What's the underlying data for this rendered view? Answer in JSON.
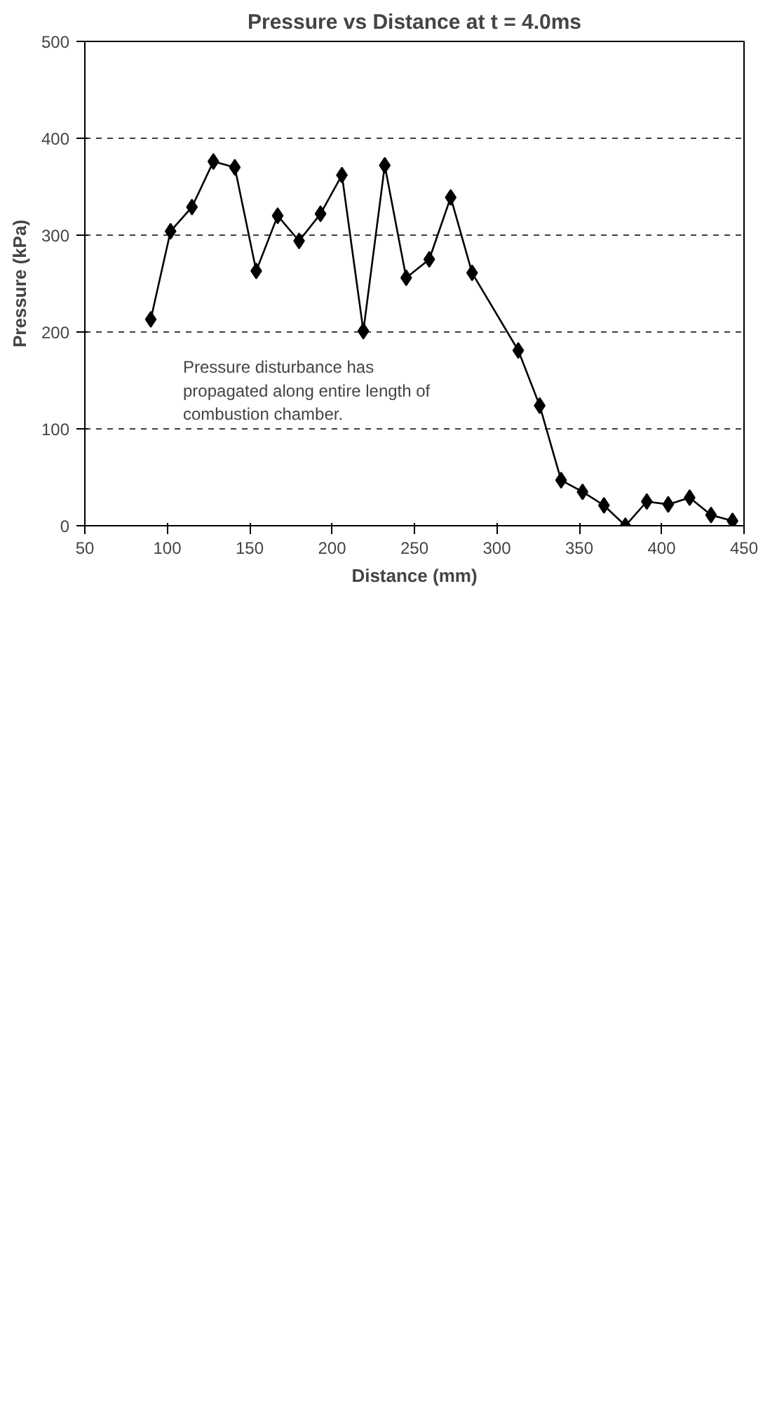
{
  "chart_data": {
    "type": "line",
    "title": "Pressure vs Distance at t = 4.0ms",
    "xlabel": "Distance (mm)",
    "ylabel": "Pressure (kPa)",
    "x": [
      90,
      102,
      115,
      128,
      141,
      154,
      167,
      180,
      193,
      206,
      219,
      232,
      245,
      259,
      272,
      285,
      313,
      326,
      339,
      352,
      365,
      378,
      391,
      404,
      417,
      430,
      443
    ],
    "series": [
      {
        "color": "#000000",
        "values": [
          213,
          304,
          329,
          376,
          370,
          263,
          320,
          294,
          322,
          362,
          201,
          372,
          256,
          275,
          339,
          261,
          181,
          124,
          47,
          35,
          21,
          0,
          25,
          22,
          29,
          11,
          5
        ]
      }
    ],
    "xlim": [
      50,
      450
    ],
    "xticks": [
      50,
      100,
      150,
      200,
      250,
      300,
      350,
      400,
      450
    ],
    "ylim": [
      0,
      500
    ],
    "yticks": [
      0,
      100,
      200,
      300,
      400,
      500
    ],
    "grid": "y",
    "marker": "diamond",
    "line_style": "solid",
    "annotations": [
      "Pressure disturbance has\npropagated along entire length of\ncombustion chamber."
    ]
  }
}
